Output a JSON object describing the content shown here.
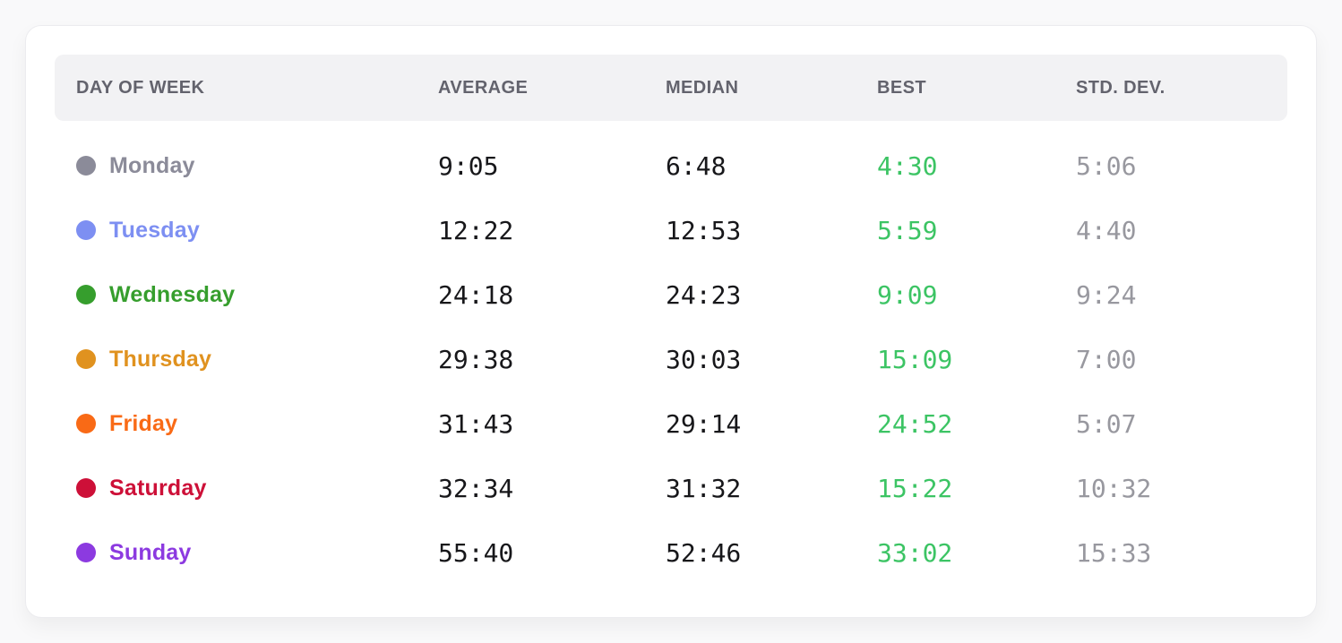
{
  "colors": {
    "page_bg": "#f9f9fa",
    "card_bg": "#ffffff",
    "header_bg": "#f2f2f4",
    "header_text": "#63636d",
    "value_text": "#17171a",
    "best_green": "#3cc464",
    "std_dev_gray": "#98989f"
  },
  "table": {
    "columns": [
      "DAY OF WEEK",
      "AVERAGE",
      "MEDIAN",
      "BEST",
      "STD. DEV."
    ],
    "rows": [
      {
        "day": "Monday",
        "color": "#8b8b99",
        "average": "9:05",
        "median": "6:48",
        "best": "4:30",
        "std_dev": "5:06"
      },
      {
        "day": "Tuesday",
        "color": "#7d8ff2",
        "average": "12:22",
        "median": "12:53",
        "best": "5:59",
        "std_dev": "4:40"
      },
      {
        "day": "Wednesday",
        "color": "#369e2d",
        "average": "24:18",
        "median": "24:23",
        "best": "9:09",
        "std_dev": "9:24"
      },
      {
        "day": "Thursday",
        "color": "#e0921f",
        "average": "29:38",
        "median": "30:03",
        "best": "15:09",
        "std_dev": "7:00"
      },
      {
        "day": "Friday",
        "color": "#f96a16",
        "average": "31:43",
        "median": "29:14",
        "best": "24:52",
        "std_dev": "5:07"
      },
      {
        "day": "Saturday",
        "color": "#cd1038",
        "average": "32:34",
        "median": "31:32",
        "best": "15:22",
        "std_dev": "10:32"
      },
      {
        "day": "Sunday",
        "color": "#8c3ae0",
        "average": "55:40",
        "median": "52:46",
        "best": "33:02",
        "std_dev": "15:33"
      }
    ]
  }
}
